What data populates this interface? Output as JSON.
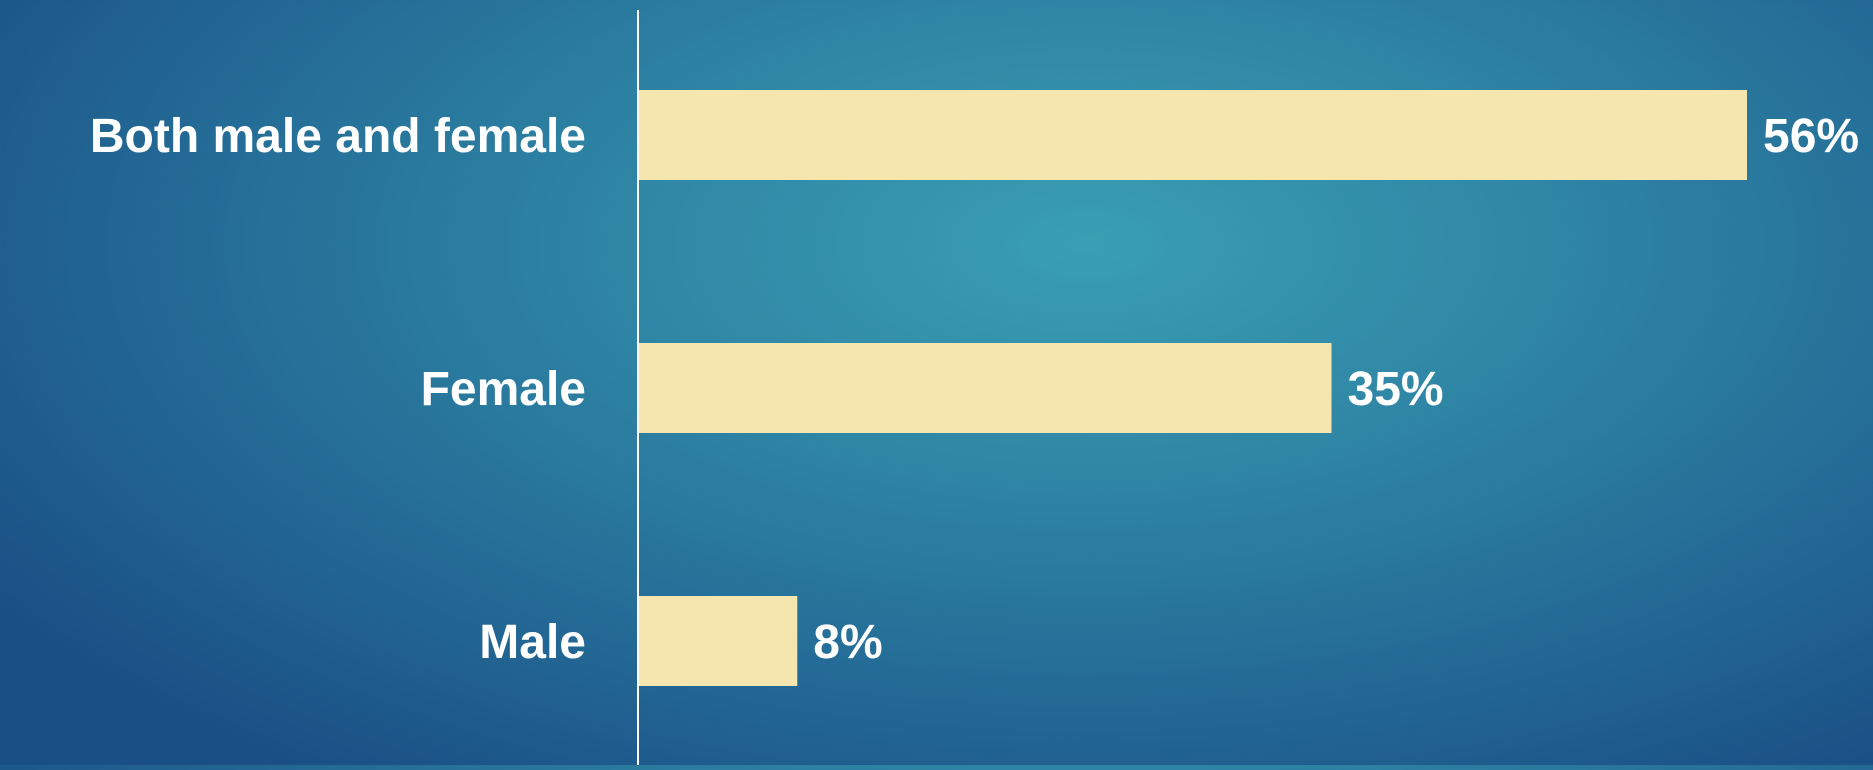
{
  "chart_data": {
    "type": "bar",
    "orientation": "horizontal",
    "categories": [
      "Both male and female",
      "Female",
      "Male"
    ],
    "values": [
      56,
      35,
      8
    ],
    "value_labels": [
      "56%",
      "35%",
      "8%"
    ],
    "unit": "%",
    "title": "",
    "xlabel": "",
    "ylabel": "",
    "xlim": [
      0,
      60
    ],
    "grid": false,
    "legend": "none",
    "colors": {
      "bar": "#f5e6b0",
      "axis": "#ffffff",
      "text": "#ffffff",
      "background": "#2a7ba0"
    }
  }
}
